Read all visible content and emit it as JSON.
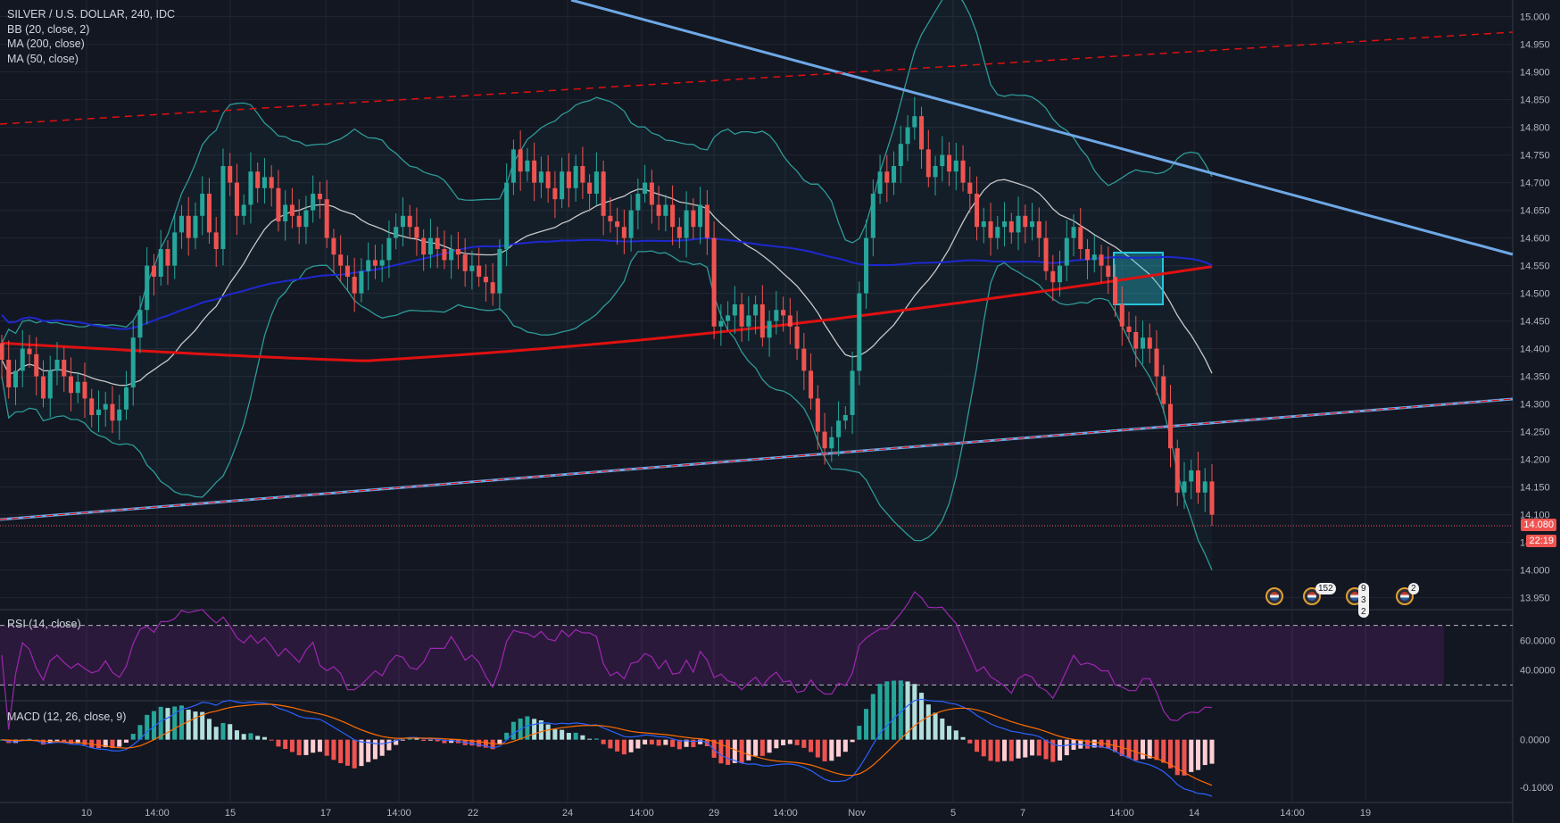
{
  "legend": {
    "symbol": "SILVER / U.S. DOLLAR, 240, IDC",
    "indicators": [
      "BB (20, close, 2)",
      "MA (200, close)",
      "MA (50, close)"
    ]
  },
  "rsi_title": "RSI (14, close)",
  "macd_title": "MACD (12, 26, close, 9)",
  "last_price": "14.080",
  "countdown": "22:19",
  "events": [
    {
      "name": "us-flag-event",
      "count": ""
    },
    {
      "name": "us-flag-event",
      "count": "152"
    },
    {
      "name": "us-flag-event",
      "count": "9 3 2"
    },
    {
      "name": "us-flag-event",
      "count": "2"
    }
  ],
  "colors": {
    "background": "#131722",
    "grid": "#232632",
    "up": "#26a69a",
    "down": "#ef5350",
    "ma200": "#e01010",
    "ma50": "#1e28d0",
    "bb": "#2e9a96",
    "bb_basis": "#c8c8c8",
    "trend": "#6ea8e6",
    "rsi": "#9c27b0"
  },
  "chart_data": [
    {
      "type": "candlestick",
      "name": "main",
      "ylim": [
        13.93,
        15.03
      ],
      "y_ticks": [
        "13.950",
        "14.000",
        "14.050",
        "14.100",
        "14.150",
        "14.200",
        "14.250",
        "14.300",
        "14.350",
        "14.400",
        "14.450",
        "14.500",
        "14.550",
        "14.600",
        "14.650",
        "14.700",
        "14.750",
        "14.800",
        "14.850",
        "14.900",
        "14.950",
        "15.000"
      ],
      "x_ticks": [
        "10",
        "14:00",
        "15",
        "17",
        "14:00",
        "22",
        "24",
        "14:00",
        "29",
        "14:00",
        "Nov",
        "5",
        "7",
        "14:00",
        "14",
        "14:00",
        "19"
      ],
      "closes": [
        14.38,
        14.33,
        14.36,
        14.4,
        14.39,
        14.35,
        14.31,
        14.36,
        14.38,
        14.35,
        14.32,
        14.34,
        14.31,
        14.28,
        14.29,
        14.3,
        14.27,
        14.29,
        14.33,
        14.42,
        14.47,
        14.55,
        14.53,
        14.58,
        14.55,
        14.61,
        14.64,
        14.6,
        14.64,
        14.68,
        14.61,
        14.58,
        14.73,
        14.7,
        14.64,
        14.66,
        14.72,
        14.69,
        14.71,
        14.69,
        14.63,
        14.66,
        14.64,
        14.62,
        14.65,
        14.68,
        14.67,
        14.6,
        14.57,
        14.55,
        14.53,
        14.5,
        14.54,
        14.56,
        14.55,
        14.56,
        14.6,
        14.62,
        14.64,
        14.62,
        14.6,
        14.57,
        14.6,
        14.58,
        14.56,
        14.58,
        14.57,
        14.54,
        14.55,
        14.53,
        14.52,
        14.5,
        14.58,
        14.7,
        14.76,
        14.72,
        14.74,
        14.7,
        14.72,
        14.69,
        14.67,
        14.72,
        14.69,
        14.73,
        14.7,
        14.68,
        14.72,
        14.64,
        14.63,
        14.62,
        14.6,
        14.65,
        14.68,
        14.7,
        14.66,
        14.64,
        14.66,
        14.62,
        14.6,
        14.65,
        14.62,
        14.66,
        14.6,
        14.44,
        14.45,
        14.46,
        14.48,
        14.44,
        14.46,
        14.48,
        14.42,
        14.45,
        14.47,
        14.46,
        14.44,
        14.4,
        14.36,
        14.31,
        14.25,
        14.22,
        14.24,
        14.27,
        14.28,
        14.36,
        14.5,
        14.6,
        14.68,
        14.72,
        14.7,
        14.73,
        14.77,
        14.8,
        14.82,
        14.76,
        14.71,
        14.73,
        14.75,
        14.72,
        14.74,
        14.7,
        14.68,
        14.62,
        14.63,
        14.6,
        14.62,
        14.63,
        14.61,
        14.64,
        14.62,
        14.63,
        14.6,
        14.54,
        14.52,
        14.55,
        14.6,
        14.62,
        14.58,
        14.56,
        14.57,
        14.55,
        14.53,
        14.48,
        14.44,
        14.43,
        14.4,
        14.42,
        14.4,
        14.35,
        14.3,
        14.22,
        14.14,
        14.16,
        14.18,
        14.14,
        14.16,
        14.1
      ]
    },
    {
      "type": "line",
      "name": "rsi",
      "ylim": [
        20,
        80
      ],
      "y_ticks": [
        "40.0000",
        "60.0000"
      ],
      "levels": [
        30,
        70
      ]
    },
    {
      "type": "histogram",
      "name": "macd",
      "ylim": [
        -0.13,
        0.08
      ],
      "y_ticks": [
        "0.0000",
        "-0.1000"
      ]
    }
  ]
}
